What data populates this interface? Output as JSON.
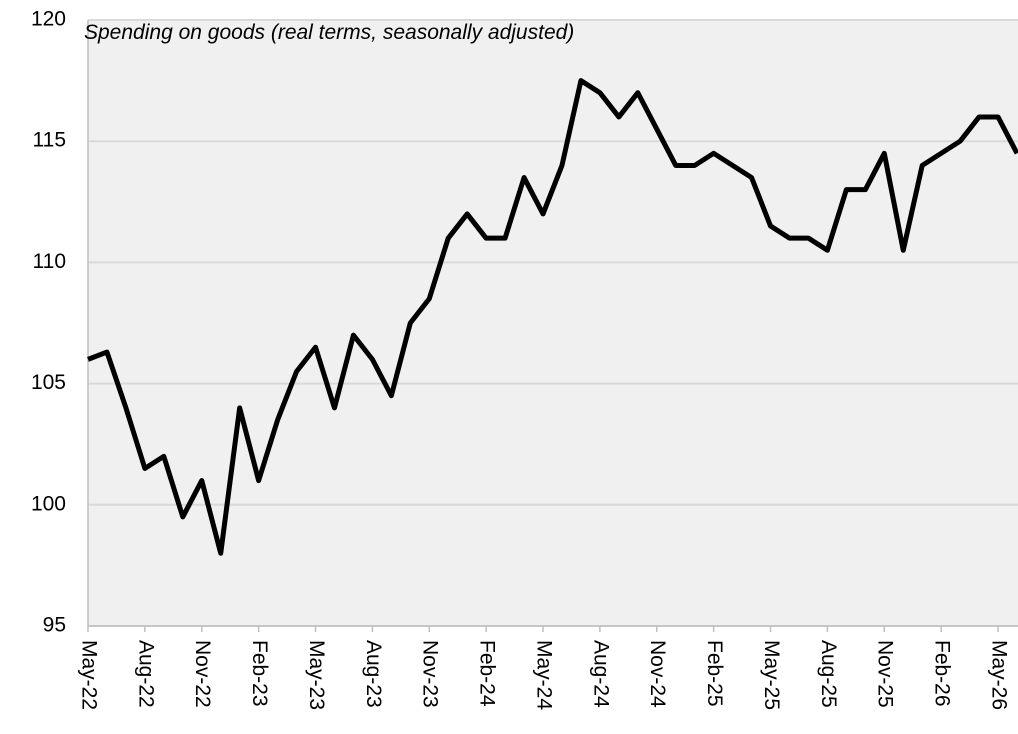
{
  "chart_data": {
    "type": "line",
    "title": "Spending on goods (real terms, seasonally adjusted)",
    "categories": [
      "May-22",
      null,
      null,
      "Aug-22",
      null,
      null,
      "Nov-22",
      null,
      null,
      "Feb-23",
      null,
      null,
      "May-23",
      null,
      null,
      "Aug-23",
      null,
      null,
      "Nov-23",
      null,
      null,
      "Feb-24",
      null,
      null,
      "May-24",
      null,
      null,
      "Aug-24",
      null,
      null,
      "Nov-24",
      null,
      null,
      "Feb-25",
      null,
      null,
      "May-25",
      null,
      null,
      "Aug-25",
      null,
      null,
      "Nov-25",
      null,
      null,
      "Feb-26",
      null,
      null,
      "May-26",
      null
    ],
    "series": [
      {
        "name": "Spending on goods",
        "color": "#000000",
        "values": [
          106,
          106.3,
          104,
          101.5,
          102,
          99.5,
          101,
          98,
          104,
          101,
          103.5,
          105.5,
          106.5,
          104,
          107,
          106,
          104.5,
          107.5,
          108.5,
          111,
          112,
          111,
          111,
          113.5,
          112,
          114,
          117.5,
          117,
          116,
          117,
          115.5,
          114,
          114,
          114.5,
          114,
          113.5,
          111.5,
          111,
          111,
          110.5,
          113,
          113,
          114.5,
          110.5,
          114,
          114.5,
          115,
          116,
          116,
          114.5
        ]
      }
    ],
    "ylim": [
      95,
      120
    ],
    "yticks": [
      95,
      100,
      105,
      110,
      115,
      120
    ],
    "grid": true
  }
}
